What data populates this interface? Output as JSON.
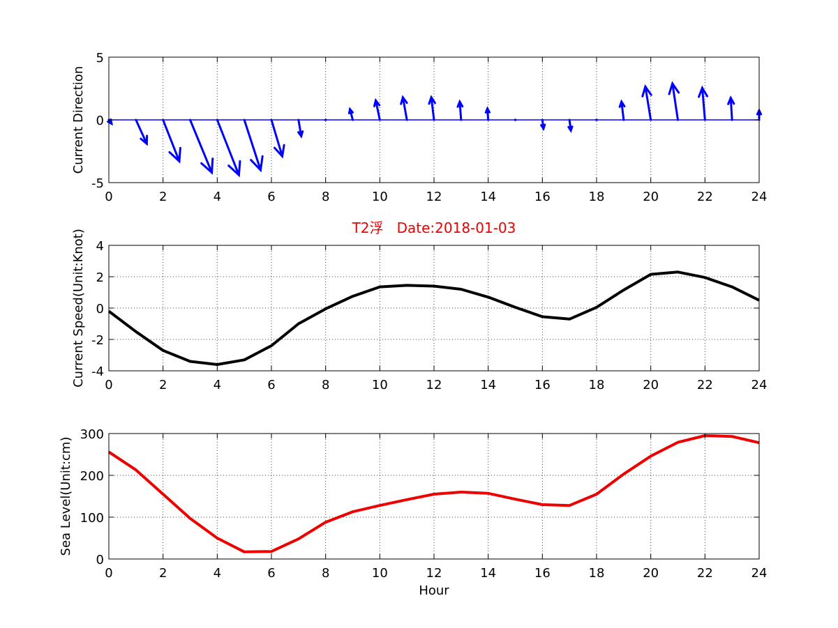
{
  "chart_data": [
    {
      "type": "quiver",
      "ylabel": "Current Direction",
      "xlabel": "",
      "xlim": [
        0,
        24
      ],
      "ylim": [
        -5,
        5
      ],
      "xticks": [
        0,
        2,
        4,
        6,
        8,
        10,
        12,
        14,
        16,
        18,
        20,
        22,
        24
      ],
      "yticks": [
        -5,
        0,
        5
      ],
      "grid": true,
      "color": "#0000ff",
      "x": [
        0,
        1,
        2,
        3,
        4,
        5,
        6,
        7,
        8,
        9,
        10,
        11,
        12,
        13,
        14,
        15,
        16,
        17,
        18,
        19,
        20,
        21,
        22,
        23,
        24
      ],
      "u": [
        0.1,
        0.4,
        0.6,
        0.8,
        0.8,
        0.6,
        0.4,
        0.1,
        0.0,
        -0.1,
        -0.15,
        -0.15,
        -0.1,
        -0.05,
        -0.03,
        0.0,
        0.04,
        0.05,
        -0.01,
        -0.08,
        -0.2,
        -0.2,
        -0.1,
        -0.05,
        0.0
      ],
      "v": [
        -0.3,
        -1.9,
        -3.3,
        -4.2,
        -4.4,
        -4.0,
        -2.9,
        -1.3,
        -0.05,
        0.85,
        1.55,
        1.8,
        1.8,
        1.45,
        0.9,
        0.05,
        -0.7,
        -0.85,
        0.0,
        1.45,
        2.65,
        2.9,
        2.55,
        1.75,
        0.75
      ]
    },
    {
      "type": "line",
      "title": "T2浮   Date:2018-01-03",
      "ylabel": "Current Speed(Unit:Knot)",
      "xlabel": "",
      "xlim": [
        0,
        24
      ],
      "ylim": [
        -4,
        4
      ],
      "xticks": [
        0,
        2,
        4,
        6,
        8,
        10,
        12,
        14,
        16,
        18,
        20,
        22,
        24
      ],
      "yticks": [
        -4,
        -2,
        0,
        2,
        4
      ],
      "grid": true,
      "series": [
        {
          "color": "#000000",
          "x": [
            0,
            1,
            2,
            3,
            4,
            5,
            6,
            7,
            8,
            9,
            10,
            11,
            12,
            13,
            14,
            15,
            16,
            17,
            18,
            19,
            20,
            21,
            22,
            23,
            24
          ],
          "values": [
            -0.2,
            -1.5,
            -2.7,
            -3.4,
            -3.6,
            -3.3,
            -2.4,
            -1.0,
            -0.05,
            0.75,
            1.35,
            1.45,
            1.4,
            1.2,
            0.7,
            0.05,
            -0.55,
            -0.7,
            0.05,
            1.15,
            2.15,
            2.3,
            1.95,
            1.35,
            0.5
          ]
        }
      ]
    },
    {
      "type": "line",
      "ylabel": "Sea Level(Unit:cm)",
      "xlabel": "Hour",
      "xlim": [
        0,
        24
      ],
      "ylim": [
        0,
        300
      ],
      "xticks": [
        0,
        2,
        4,
        6,
        8,
        10,
        12,
        14,
        16,
        18,
        20,
        22,
        24
      ],
      "yticks": [
        0,
        100,
        200,
        300
      ],
      "grid": true,
      "series": [
        {
          "color": "#ee0000",
          "x": [
            0,
            1,
            2,
            3,
            4,
            5,
            6,
            7,
            8,
            9,
            10,
            11,
            12,
            13,
            14,
            15,
            16,
            17,
            18,
            19,
            20,
            21,
            22,
            23,
            24
          ],
          "values": [
            256,
            213,
            155,
            97,
            50,
            17,
            18,
            48,
            88,
            113,
            128,
            142,
            155,
            160,
            157,
            143,
            130,
            128,
            155,
            203,
            246,
            279,
            295,
            293,
            278
          ]
        }
      ]
    }
  ]
}
